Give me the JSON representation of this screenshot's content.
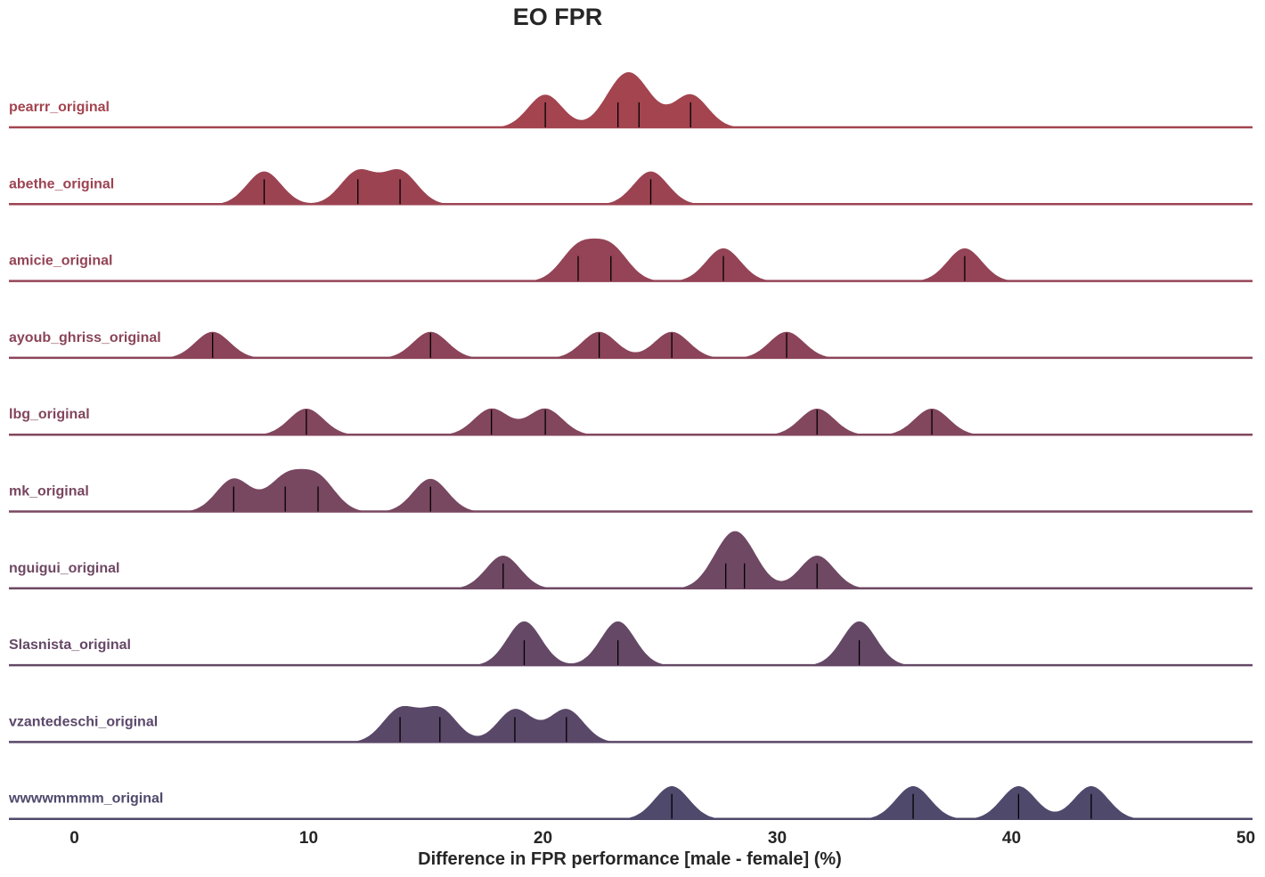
{
  "chart_data": {
    "type": "ridgeline",
    "title": "EO FPR",
    "xlabel": "Difference in FPR performance [male - female] (%)",
    "xlim": [
      -2.8,
      50
    ],
    "xticks": [
      0,
      10,
      20,
      30,
      40,
      50
    ],
    "grid": false,
    "legend": "none",
    "series": [
      {
        "name": "pearrr_original",
        "color": "#a3444f",
        "values": [
          20.1,
          23.2,
          24.1,
          26.3
        ]
      },
      {
        "name": "abethe_original",
        "color": "#9c4352",
        "values": [
          8.1,
          12.1,
          13.9,
          24.6
        ]
      },
      {
        "name": "amicie_original",
        "color": "#944456",
        "values": [
          21.5,
          22.9,
          27.7,
          38.0
        ]
      },
      {
        "name": "ayoub_ghriss_original",
        "color": "#8b4459",
        "values": [
          5.9,
          15.2,
          22.4,
          25.5,
          30.4
        ]
      },
      {
        "name": "lbg_original",
        "color": "#82465d",
        "values": [
          9.9,
          17.8,
          20.1,
          31.7,
          36.6
        ]
      },
      {
        "name": "mk_original",
        "color": "#784760",
        "values": [
          6.8,
          9.0,
          10.4,
          15.2
        ]
      },
      {
        "name": "nguigui_original",
        "color": "#6f4863",
        "values": [
          18.3,
          27.8,
          28.6,
          31.7
        ]
      },
      {
        "name": "Slasnista_original",
        "color": "#654866",
        "values": [
          19.2,
          23.2,
          33.5
        ]
      },
      {
        "name": "vzantedeschi_original",
        "color": "#5a4869",
        "values": [
          13.9,
          15.6,
          18.8,
          21.0
        ]
      },
      {
        "name": "wwwwmmmm_original",
        "color": "#4f496c",
        "values": [
          25.5,
          35.8,
          40.3,
          43.4
        ]
      }
    ]
  }
}
